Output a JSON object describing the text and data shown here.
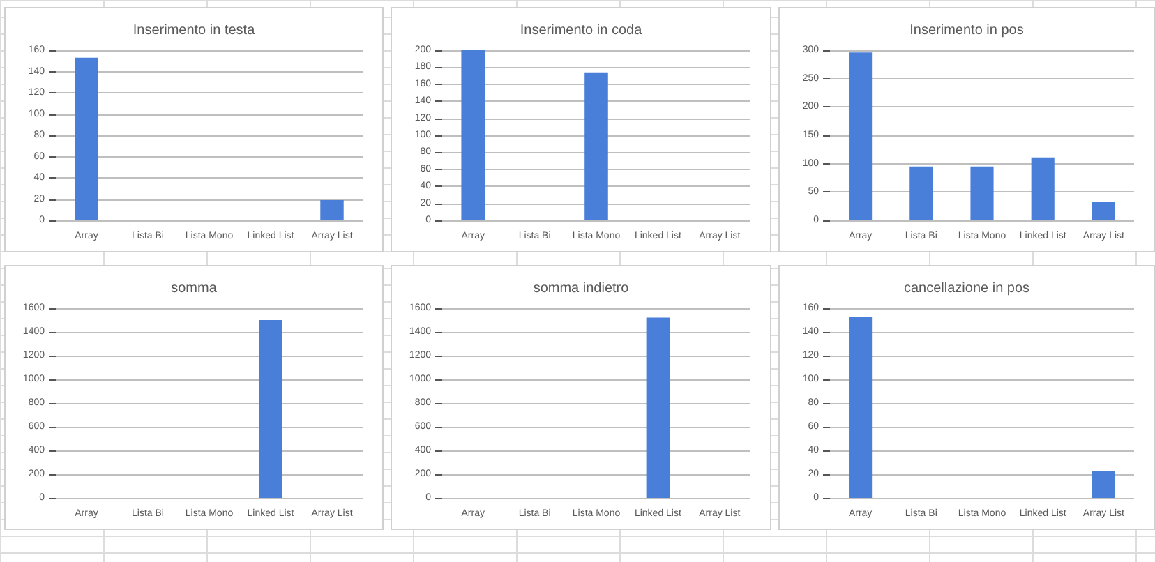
{
  "chart_data": [
    {
      "type": "bar",
      "title": "Inserimento in testa",
      "categories": [
        "Array",
        "Lista Bi",
        "Lista Mono",
        "Linked List",
        "Array List"
      ],
      "values": [
        153,
        0,
        0,
        0,
        19
      ],
      "color": "#4a7fd9",
      "ylim": [
        0,
        160
      ],
      "yticks": [
        0,
        20,
        40,
        60,
        80,
        100,
        120,
        140,
        160
      ],
      "grid": "y"
    },
    {
      "type": "bar",
      "title": "Inserimento in coda",
      "categories": [
        "Array",
        "Lista Bi",
        "Lista Mono",
        "Linked List",
        "Array List"
      ],
      "values": [
        200,
        0,
        174,
        0,
        0
      ],
      "color": "#4a7fd9",
      "ylim": [
        0,
        200
      ],
      "yticks": [
        0,
        20,
        40,
        60,
        80,
        100,
        120,
        140,
        160,
        180,
        200
      ],
      "grid": "y"
    },
    {
      "type": "bar",
      "title": "Inserimento in pos",
      "categories": [
        "Array",
        "Lista Bi",
        "Lista Mono",
        "Linked List",
        "Array List"
      ],
      "values": [
        296,
        95,
        95,
        111,
        32
      ],
      "color": "#4a7fd9",
      "ylim": [
        0,
        300
      ],
      "yticks": [
        0,
        50,
        100,
        150,
        200,
        250,
        300
      ],
      "grid": "y"
    },
    {
      "type": "bar",
      "title": "somma",
      "categories": [
        "Array",
        "Lista Bi",
        "Lista Mono",
        "Linked List",
        "Array List"
      ],
      "values": [
        0,
        0,
        0,
        1500,
        0
      ],
      "color": "#4a7fd9",
      "ylim": [
        0,
        1600
      ],
      "yticks": [
        0,
        200,
        400,
        600,
        800,
        1000,
        1200,
        1400,
        1600
      ],
      "grid": "y"
    },
    {
      "type": "bar",
      "title": "somma indietro",
      "categories": [
        "Array",
        "Lista Bi",
        "Lista Mono",
        "Linked List",
        "Array List"
      ],
      "values": [
        0,
        0,
        0,
        1520,
        0
      ],
      "color": "#4a7fd9",
      "ylim": [
        0,
        1600
      ],
      "yticks": [
        0,
        200,
        400,
        600,
        800,
        1000,
        1200,
        1400,
        1600
      ],
      "grid": "y"
    },
    {
      "type": "bar",
      "title": "cancellazione in pos",
      "categories": [
        "Array",
        "Lista Bi",
        "Lista Mono",
        "Linked List",
        "Array List"
      ],
      "values": [
        153,
        0,
        0,
        0,
        23
      ],
      "color": "#4a7fd9",
      "ylim": [
        0,
        160
      ],
      "yticks": [
        0,
        20,
        40,
        60,
        80,
        100,
        120,
        140,
        160
      ],
      "grid": "y"
    }
  ]
}
